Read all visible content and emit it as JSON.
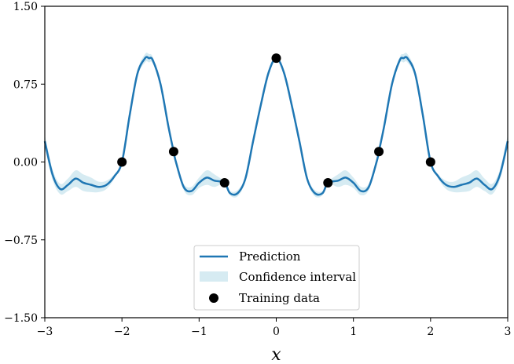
{
  "colors": {
    "prediction": "#1f77b4",
    "confidence": "#add8e6",
    "training": "#000000",
    "frame": "#000000",
    "legend_border": "#cccccc"
  },
  "chart_data": {
    "type": "line",
    "xlabel": "x",
    "ylabel": "",
    "xlim": [
      -3,
      3
    ],
    "ylim": [
      -1.5,
      1.5
    ],
    "xticks": [
      -3,
      -2,
      -1,
      0,
      1,
      2,
      3
    ],
    "xtick_labels": [
      "−3",
      "−2",
      "−1",
      "0",
      "1",
      "2",
      "3"
    ],
    "yticks": [
      -1.5,
      -0.75,
      0,
      0.75,
      1.5
    ],
    "ytick_labels": [
      "−1.50",
      "−0.75",
      "0.00",
      "0.75",
      "1.50"
    ],
    "grid": false,
    "legend_position": "lower-center",
    "series": [
      {
        "name": "Prediction",
        "kind": "line",
        "x": [
          -3.0,
          -2.9,
          -2.8,
          -2.7,
          -2.6,
          -2.5,
          -2.4,
          -2.3,
          -2.2,
          -2.1,
          -2.0,
          -1.9,
          -1.8,
          -1.7,
          -1.65,
          -1.6,
          -1.5,
          -1.4,
          -1.33,
          -1.3,
          -1.2,
          -1.1,
          -1.0,
          -0.9,
          -0.8,
          -0.67,
          -0.6,
          -0.5,
          -0.4,
          -0.3,
          -0.2,
          -0.1,
          0.0,
          0.1,
          0.2,
          0.3,
          0.4,
          0.5,
          0.6,
          0.67,
          0.8,
          0.9,
          1.0,
          1.1,
          1.2,
          1.3,
          1.33,
          1.4,
          1.5,
          1.6,
          1.65,
          1.7,
          1.8,
          1.9,
          2.0,
          2.1,
          2.2,
          2.3,
          2.4,
          2.5,
          2.6,
          2.7,
          2.8,
          2.9,
          3.0
        ],
        "y": [
          0.2,
          -0.12,
          -0.26,
          -0.22,
          -0.16,
          -0.2,
          -0.22,
          -0.24,
          -0.22,
          -0.14,
          0.0,
          0.45,
          0.85,
          1.0,
          1.0,
          0.98,
          0.75,
          0.35,
          0.1,
          0.0,
          -0.24,
          -0.28,
          -0.2,
          -0.15,
          -0.18,
          -0.2,
          -0.3,
          -0.3,
          -0.16,
          0.2,
          0.55,
          0.86,
          1.0,
          0.86,
          0.55,
          0.2,
          -0.16,
          -0.3,
          -0.3,
          -0.2,
          -0.18,
          -0.15,
          -0.2,
          -0.28,
          -0.24,
          0.0,
          0.1,
          0.35,
          0.75,
          0.98,
          1.0,
          1.0,
          0.85,
          0.45,
          0.0,
          -0.14,
          -0.22,
          -0.24,
          -0.22,
          -0.2,
          -0.16,
          -0.22,
          -0.26,
          -0.12,
          0.2
        ]
      },
      {
        "name": "Confidence interval",
        "kind": "band",
        "x": [
          -3.0,
          -2.9,
          -2.8,
          -2.7,
          -2.6,
          -2.5,
          -2.4,
          -2.3,
          -2.2,
          -2.1,
          -2.0,
          -1.9,
          -1.8,
          -1.7,
          -1.65,
          -1.6,
          -1.5,
          -1.4,
          -1.33,
          -1.3,
          -1.2,
          -1.1,
          -1.0,
          -0.9,
          -0.8,
          -0.67,
          -0.6,
          -0.5,
          -0.4,
          -0.3,
          -0.2,
          -0.1,
          0.0,
          0.1,
          0.2,
          0.3,
          0.4,
          0.5,
          0.6,
          0.67,
          0.8,
          0.9,
          1.0,
          1.1,
          1.2,
          1.3,
          1.33,
          1.4,
          1.5,
          1.6,
          1.65,
          1.7,
          1.8,
          1.9,
          2.0,
          2.1,
          2.2,
          2.3,
          2.4,
          2.5,
          2.6,
          2.7,
          2.8,
          2.9,
          3.0
        ],
        "lower": [
          0.14,
          -0.17,
          -0.31,
          -0.28,
          -0.24,
          -0.28,
          -0.29,
          -0.29,
          -0.26,
          -0.16,
          0.0,
          0.43,
          0.82,
          0.96,
          0.96,
          0.95,
          0.73,
          0.34,
          0.1,
          -0.01,
          -0.27,
          -0.32,
          -0.25,
          -0.22,
          -0.24,
          -0.21,
          -0.32,
          -0.33,
          -0.18,
          0.19,
          0.54,
          0.85,
          1.0,
          0.85,
          0.54,
          0.19,
          -0.18,
          -0.33,
          -0.32,
          -0.21,
          -0.24,
          -0.22,
          -0.25,
          -0.32,
          -0.27,
          -0.01,
          0.1,
          0.34,
          0.73,
          0.95,
          0.96,
          0.96,
          0.82,
          0.43,
          0.0,
          -0.16,
          -0.26,
          -0.29,
          -0.29,
          -0.28,
          -0.24,
          -0.28,
          -0.31,
          -0.17,
          0.14
        ],
        "upper": [
          0.26,
          -0.07,
          -0.21,
          -0.16,
          -0.08,
          -0.12,
          -0.15,
          -0.19,
          -0.18,
          -0.12,
          0.0,
          0.47,
          0.88,
          1.04,
          1.04,
          1.01,
          0.77,
          0.36,
          0.1,
          0.01,
          -0.21,
          -0.24,
          -0.15,
          -0.08,
          -0.12,
          -0.19,
          -0.28,
          -0.27,
          -0.14,
          0.21,
          0.56,
          0.87,
          1.0,
          0.87,
          0.56,
          0.21,
          -0.14,
          -0.27,
          -0.28,
          -0.19,
          -0.12,
          -0.08,
          -0.15,
          -0.24,
          -0.21,
          0.01,
          0.1,
          0.36,
          0.77,
          1.01,
          1.04,
          1.04,
          0.88,
          0.47,
          0.0,
          -0.12,
          -0.18,
          -0.19,
          -0.15,
          -0.12,
          -0.08,
          -0.16,
          -0.21,
          -0.07,
          0.26
        ]
      },
      {
        "name": "Training data",
        "kind": "scatter",
        "x": [
          -2.0,
          -1.33,
          -0.67,
          0.0,
          0.67,
          1.33,
          2.0
        ],
        "y": [
          0.0,
          0.1,
          -0.2,
          1.0,
          -0.2,
          0.1,
          0.0
        ]
      }
    ]
  }
}
